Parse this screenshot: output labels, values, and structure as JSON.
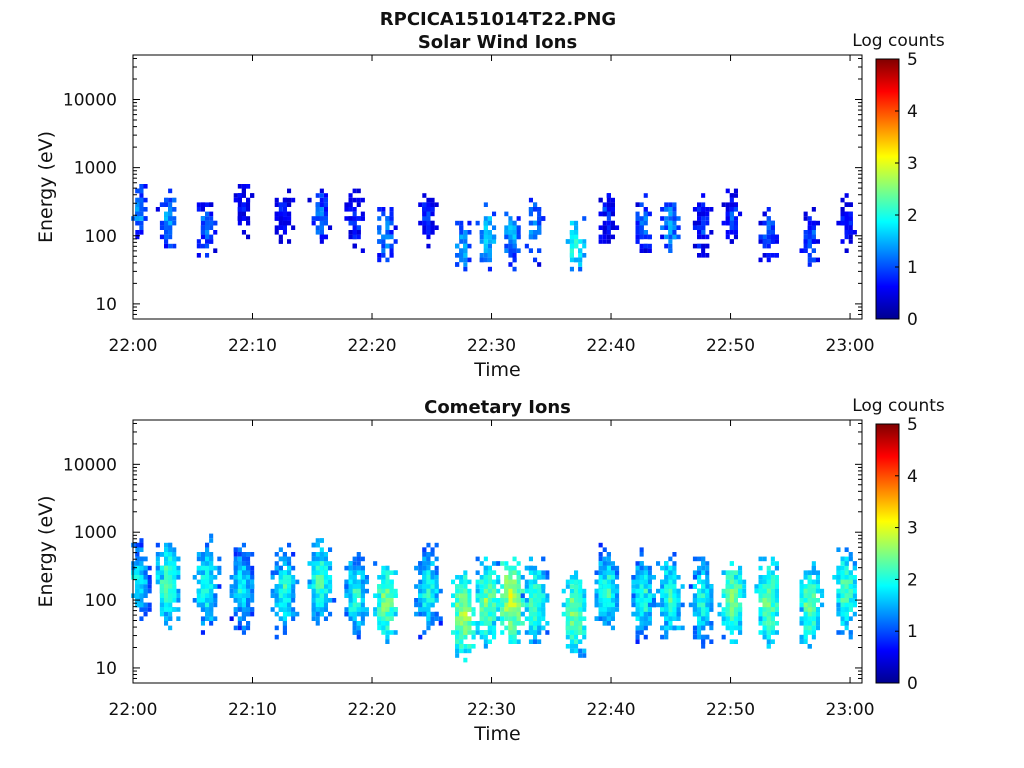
{
  "figure": {
    "title": "RPCICA151014T22.PNG"
  },
  "colors": {
    "colormap": [
      "#00008f",
      "#0000ff",
      "#0080ff",
      "#00ffff",
      "#80ff80",
      "#ffff00",
      "#ff8000",
      "#ff0000",
      "#800000"
    ],
    "axis": "#000000"
  },
  "chart_data": [
    {
      "type": "heatmap",
      "title": "Solar Wind Ions",
      "xlabel": "Time",
      "ylabel": "Energy (eV)",
      "y_scale": "log",
      "x_ticks": [
        "22:00",
        "22:10",
        "22:20",
        "22:30",
        "22:40",
        "22:50",
        "23:00"
      ],
      "xlim": [
        "22:00",
        "23:01"
      ],
      "y_ticks": [
        "10",
        "100",
        "1000",
        "10000"
      ],
      "ylim": [
        6,
        45000
      ],
      "colorbar": {
        "label": "Log counts",
        "range": [
          0,
          5
        ],
        "ticks": [
          "0",
          "1",
          "2",
          "3",
          "4",
          "5"
        ]
      },
      "grid": false,
      "bursts": [
        {
          "t": 0.3,
          "e": 250,
          "level": 1.4
        },
        {
          "t": 2.8,
          "e": 200,
          "level": 1.5
        },
        {
          "t": 6.0,
          "e": 150,
          "level": 1.3
        },
        {
          "t": 9.0,
          "e": 300,
          "level": 0.9
        },
        {
          "t": 12.5,
          "e": 200,
          "level": 0.9
        },
        {
          "t": 15.5,
          "e": 200,
          "level": 1.3
        },
        {
          "t": 18.5,
          "e": 180,
          "level": 1.0
        },
        {
          "t": 21.0,
          "e": 110,
          "level": 1.5
        },
        {
          "t": 24.5,
          "e": 200,
          "level": 0.9
        },
        {
          "t": 27.5,
          "e": 70,
          "level": 1.6
        },
        {
          "t": 29.5,
          "e": 110,
          "level": 1.8
        },
        {
          "t": 31.5,
          "e": 110,
          "level": 1.6
        },
        {
          "t": 33.5,
          "e": 150,
          "level": 1.5
        },
        {
          "t": 36.8,
          "e": 80,
          "level": 2.1
        },
        {
          "t": 39.5,
          "e": 200,
          "level": 1.0
        },
        {
          "t": 42.5,
          "e": 150,
          "level": 1.3
        },
        {
          "t": 44.8,
          "e": 150,
          "level": 1.6
        },
        {
          "t": 47.5,
          "e": 150,
          "level": 1.1
        },
        {
          "t": 50.0,
          "e": 200,
          "level": 1.0
        },
        {
          "t": 53.0,
          "e": 110,
          "level": 1.2
        },
        {
          "t": 56.5,
          "e": 90,
          "level": 1.2
        },
        {
          "t": 59.5,
          "e": 200,
          "level": 0.9
        }
      ]
    },
    {
      "type": "heatmap",
      "title": "Cometary Ions",
      "xlabel": "Time",
      "ylabel": "Energy (eV)",
      "y_scale": "log",
      "x_ticks": [
        "22:00",
        "22:10",
        "22:20",
        "22:30",
        "22:40",
        "22:50",
        "23:00"
      ],
      "xlim": [
        "22:00",
        "23:01"
      ],
      "y_ticks": [
        "10",
        "100",
        "1000",
        "10000"
      ],
      "ylim": [
        6,
        45000
      ],
      "colorbar": {
        "label": "Log counts",
        "range": [
          0,
          5
        ],
        "ticks": [
          "0",
          "1",
          "2",
          "3",
          "4",
          "5"
        ]
      },
      "grid": false,
      "bursts": [
        {
          "t": 0.3,
          "e": 200,
          "level": 2.0
        },
        {
          "t": 2.8,
          "e": 200,
          "level": 2.4
        },
        {
          "t": 6.0,
          "e": 180,
          "level": 2.2
        },
        {
          "t": 9.0,
          "e": 160,
          "level": 2.0
        },
        {
          "t": 12.5,
          "e": 150,
          "level": 2.2
        },
        {
          "t": 15.5,
          "e": 200,
          "level": 2.3
        },
        {
          "t": 18.5,
          "e": 120,
          "level": 2.2
        },
        {
          "t": 21.0,
          "e": 100,
          "level": 2.6
        },
        {
          "t": 24.5,
          "e": 150,
          "level": 2.2
        },
        {
          "t": 27.5,
          "e": 70,
          "level": 2.8
        },
        {
          "t": 29.5,
          "e": 100,
          "level": 2.6
        },
        {
          "t": 31.5,
          "e": 110,
          "level": 3.0
        },
        {
          "t": 33.5,
          "e": 100,
          "level": 2.4
        },
        {
          "t": 36.8,
          "e": 70,
          "level": 2.6
        },
        {
          "t": 39.5,
          "e": 150,
          "level": 2.2
        },
        {
          "t": 42.5,
          "e": 120,
          "level": 2.2
        },
        {
          "t": 44.8,
          "e": 120,
          "level": 2.3
        },
        {
          "t": 47.5,
          "e": 100,
          "level": 2.2
        },
        {
          "t": 50.0,
          "e": 110,
          "level": 2.6
        },
        {
          "t": 53.0,
          "e": 100,
          "level": 2.6
        },
        {
          "t": 56.5,
          "e": 90,
          "level": 2.5
        },
        {
          "t": 59.5,
          "e": 150,
          "level": 2.4
        }
      ]
    }
  ]
}
